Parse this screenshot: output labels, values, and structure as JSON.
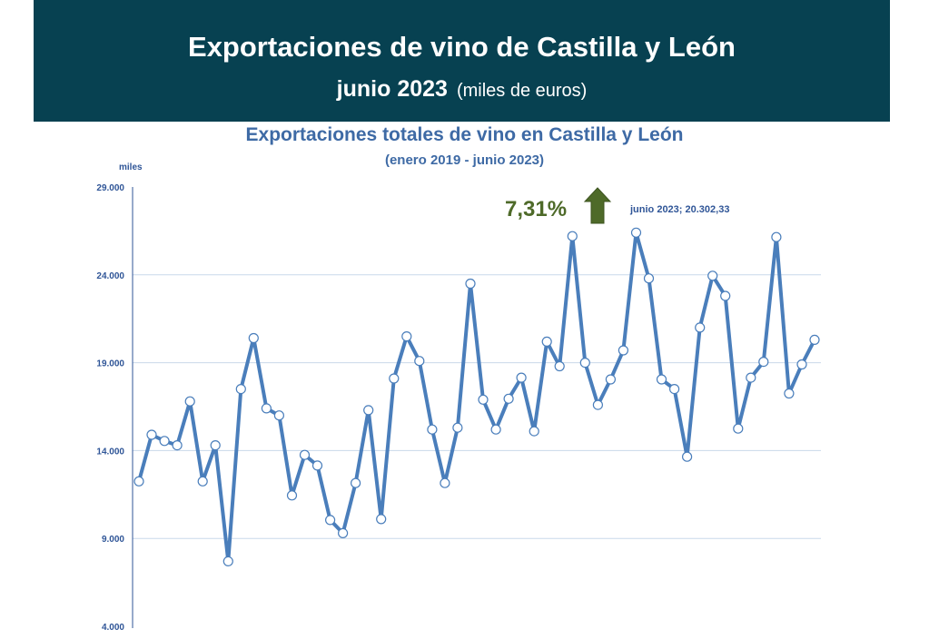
{
  "header": {
    "title": "Exportaciones de vino de Castilla y León",
    "period": "junio 2023",
    "units": "(miles de euros)"
  },
  "chart_data": {
    "type": "line",
    "title": "Exportaciones totales de vino en Castilla y León",
    "subtitle": "(enero 2019 - junio 2023)",
    "ylabel": "miles",
    "ylim": [
      4000,
      29000
    ],
    "yticks": [
      4000,
      9000,
      14000,
      19000,
      24000,
      29000
    ],
    "ytick_labels": [
      "4.000",
      "9.000",
      "14.000",
      "19.000",
      "24.000",
      "29.000"
    ],
    "grid": true,
    "x_range": "enero 2019 - junio 2023",
    "series": [
      {
        "name": "Exportaciones totales de vino",
        "color": "#4A7EBB",
        "values": [
          12250,
          14900,
          14550,
          14300,
          16800,
          12250,
          14300,
          7700,
          17500,
          20400,
          16400,
          16000,
          11450,
          13750,
          13150,
          10050,
          9300,
          12150,
          16300,
          10100,
          18100,
          20500,
          19100,
          15200,
          12150,
          15300,
          23500,
          16900,
          15200,
          16950,
          18150,
          15100,
          20200,
          18800,
          26200,
          19000,
          16600,
          18050,
          19700,
          26400,
          23800,
          18050,
          17500,
          13650,
          21000,
          23950,
          22800,
          15250,
          18150,
          19050,
          26150,
          17250,
          18900,
          20302.33
        ]
      }
    ],
    "annotations": {
      "change_pct": "7,31%",
      "change_direction": "up",
      "last_point_label": "junio 2023; 20.302,33"
    }
  }
}
